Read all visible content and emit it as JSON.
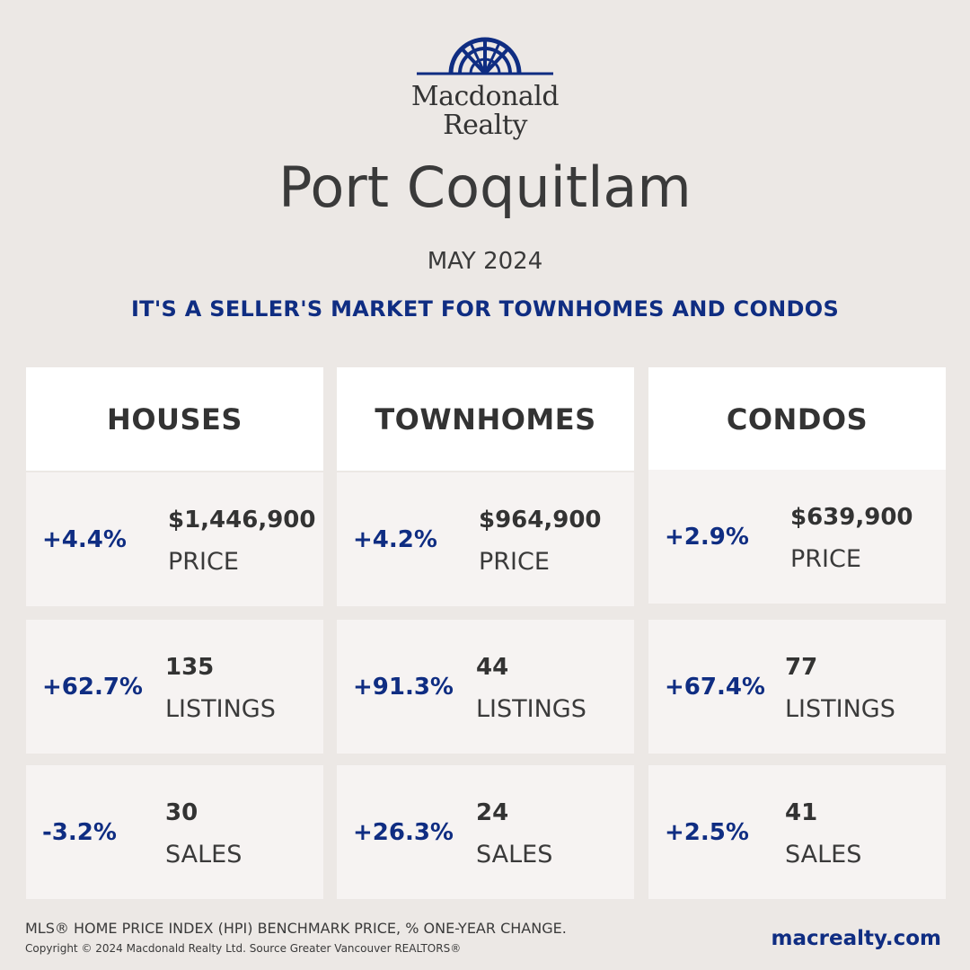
{
  "brand": {
    "line1": "Macdonald",
    "line2": "Realty",
    "icon": "sunburst-arch-logo",
    "color": "#0f2d82"
  },
  "header": {
    "city": "Port Coquitlam",
    "month": "MAY 2024",
    "headline": "IT'S A SELLER'S MARKET FOR TOWNHOMES AND CONDOS"
  },
  "columns": [
    {
      "title": "HOUSES",
      "price": {
        "change": "+4.4%",
        "value": "$1,446,900",
        "label": "PRICE"
      },
      "listings": {
        "change": "+62.7%",
        "value": "135",
        "label": "LISTINGS"
      },
      "sales": {
        "change": "-3.2%",
        "value": "30",
        "label": "SALES"
      }
    },
    {
      "title": "TOWNHOMES",
      "price": {
        "change": "+4.2%",
        "value": "$964,900",
        "label": "PRICE"
      },
      "listings": {
        "change": "+91.3%",
        "value": "44",
        "label": "LISTINGS"
      },
      "sales": {
        "change": "+26.3%",
        "value": "24",
        "label": "SALES"
      }
    },
    {
      "title": "CONDOS",
      "price": {
        "change": "+2.9%",
        "value": "$639,900",
        "label": "PRICE"
      },
      "listings": {
        "change": "+67.4%",
        "value": "77",
        "label": "LISTINGS"
      },
      "sales": {
        "change": "+2.5%",
        "value": "41",
        "label": "SALES"
      }
    }
  ],
  "footer": {
    "note": "MLS® HOME PRICE INDEX (HPI) BENCHMARK PRICE, % ONE-YEAR CHANGE.",
    "copyright": "Copyright © 2024 Macdonald Realty Ltd. Source Greater Vancouver REALTORS®",
    "url": "macrealty.com"
  },
  "colors": {
    "accent": "#0f2d82",
    "background": "#ece8e5",
    "card": "#f6f3f2",
    "header_card": "#ffffff",
    "text": "#3a3a3a"
  }
}
